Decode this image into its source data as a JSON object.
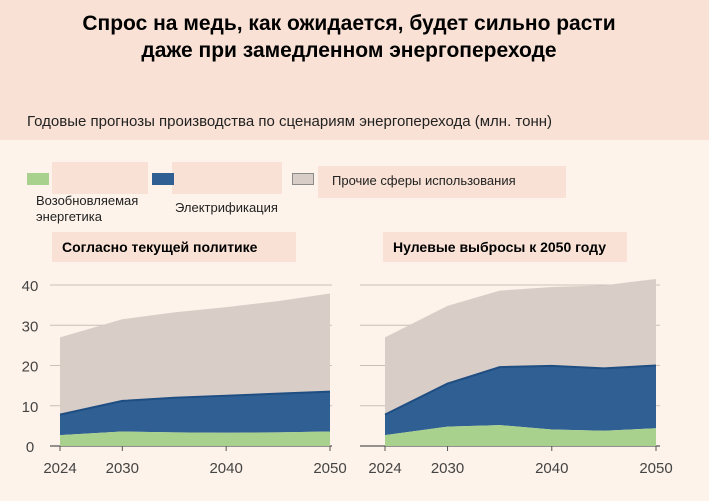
{
  "title_line1": "Спрос на медь, как ожидается, будет сильно расти",
  "title_line2": "даже при замедленном энергопереходе",
  "subtitle": "Годовые прогнозы производства по сценариям энергоперехода (млн. тонн)",
  "legend": [
    {
      "label_line1": "Возобновляемая",
      "label_line2": "энергетика",
      "color": "#a9d18e"
    },
    {
      "label": "Электрификация",
      "color": "#2f5f93"
    },
    {
      "label": "Прочие сферы использования",
      "color": "#d9cdc8"
    }
  ],
  "chart_data": [
    {
      "type": "area",
      "title": "Согласно текущей политике",
      "x": [
        2024,
        2030,
        2035,
        2040,
        2045,
        2050
      ],
      "xticks": [
        "2024",
        "2030",
        "2040",
        "2050"
      ],
      "yticks": [
        "0",
        "10",
        "20",
        "30",
        "40"
      ],
      "ylim": [
        0,
        42
      ],
      "stacked": true,
      "grid": true,
      "series": [
        {
          "name": "Возобновляемая энергетика",
          "color": "#a9d18e",
          "values": [
            2.7,
            3.6,
            3.4,
            3.3,
            3.4,
            3.6
          ]
        },
        {
          "name": "Электрификация",
          "color": "#2f5f93",
          "values": [
            5.1,
            7.6,
            8.6,
            9.2,
            9.6,
            9.9
          ]
        },
        {
          "name": "Прочие сферы использования",
          "color": "#d9cdc8",
          "values": [
            19.2,
            20.3,
            21.2,
            22.0,
            23.0,
            24.4
          ]
        }
      ]
    },
    {
      "type": "area",
      "title": "Нулевые выбросы к 2050 году",
      "x": [
        2024,
        2030,
        2035,
        2040,
        2045,
        2050
      ],
      "xticks": [
        "2024",
        "2030",
        "2040",
        "2050"
      ],
      "yticks": [
        "0",
        "10",
        "20",
        "30",
        "40"
      ],
      "ylim": [
        0,
        42
      ],
      "stacked": true,
      "grid": true,
      "series": [
        {
          "name": "Возобновляемая энергетика",
          "color": "#a9d18e",
          "values": [
            2.7,
            4.8,
            5.2,
            4.1,
            3.8,
            4.4
          ]
        },
        {
          "name": "Электрификация",
          "color": "#2f5f93",
          "values": [
            5.1,
            10.7,
            14.4,
            15.8,
            15.5,
            15.6
          ]
        },
        {
          "name": "Прочие сферы использования",
          "color": "#d9cdc8",
          "values": [
            19.2,
            19.3,
            19.0,
            19.6,
            20.6,
            21.5
          ]
        }
      ]
    }
  ]
}
